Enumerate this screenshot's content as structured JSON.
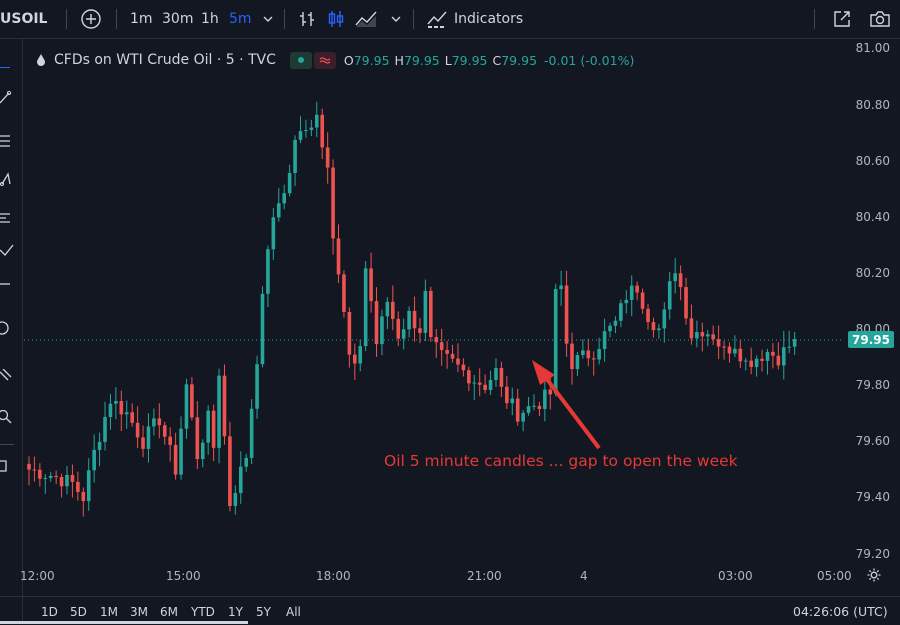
{
  "toolbar": {
    "symbol": "USOIL",
    "intervals": [
      "1m",
      "30m",
      "1h",
      "5m"
    ],
    "active_interval": "5m",
    "indicators_label": "Indicators"
  },
  "legend": {
    "title": "CFDs on WTI Crude Oil · 5 · TVC",
    "o_label": "O",
    "o_value": "79.95",
    "h_label": "H",
    "h_value": "79.95",
    "l_label": "L",
    "l_value": "79.95",
    "c_label": "C",
    "c_value": "79.95",
    "change": "-0.01 (-0.01%)",
    "up_color": "#26a69a",
    "down_color": "#ef5350"
  },
  "price_tag": "79.95",
  "annotation": {
    "text": "Oil 5 minute candles  ... gap to open the week",
    "color": "#e53935"
  },
  "chart_data": {
    "type": "candlestick",
    "y_ticks": [
      "81.00",
      "80.80",
      "80.60",
      "80.40",
      "80.20",
      "80.00",
      "79.80",
      "79.60",
      "79.40",
      "79.20"
    ],
    "ylim": [
      79.17,
      81.03
    ],
    "x_ticks": [
      "12:00",
      "15:00",
      "18:00",
      "21:00",
      "4",
      "03:00",
      "05:00"
    ],
    "last_price": 79.95,
    "close_path": [
      [
        0,
        79.5
      ],
      [
        4,
        79.48
      ],
      [
        8,
        79.45
      ],
      [
        10,
        79.4
      ],
      [
        12,
        79.56
      ],
      [
        15,
        79.75
      ],
      [
        18,
        79.7
      ],
      [
        21,
        79.6
      ],
      [
        24,
        79.68
      ],
      [
        27,
        79.5
      ],
      [
        29,
        79.8
      ],
      [
        31,
        79.55
      ],
      [
        33,
        79.68
      ],
      [
        34,
        79.58
      ],
      [
        35,
        79.85
      ],
      [
        37,
        79.38
      ],
      [
        40,
        79.55
      ],
      [
        42,
        79.9
      ],
      [
        44,
        80.3
      ],
      [
        46,
        80.45
      ],
      [
        48,
        80.55
      ],
      [
        49,
        80.68
      ],
      [
        51,
        80.7
      ],
      [
        53,
        80.78
      ],
      [
        54,
        80.65
      ],
      [
        55,
        80.6
      ],
      [
        56,
        80.35
      ],
      [
        57,
        80.2
      ],
      [
        58,
        80.05
      ],
      [
        59,
        79.9
      ],
      [
        60,
        79.85
      ],
      [
        61,
        79.95
      ],
      [
        62,
        80.22
      ],
      [
        63,
        80.1
      ],
      [
        64,
        79.95
      ],
      [
        66,
        80.1
      ],
      [
        68,
        79.98
      ],
      [
        70,
        80.05
      ],
      [
        72,
        80.0
      ],
      [
        73,
        80.12
      ],
      [
        74,
        79.95
      ],
      [
        76,
        79.9
      ],
      [
        78,
        79.88
      ],
      [
        80,
        79.85
      ],
      [
        82,
        79.82
      ],
      [
        84,
        79.8
      ],
      [
        86,
        79.85
      ],
      [
        87,
        79.78
      ],
      [
        88,
        79.75
      ],
      [
        90,
        79.7
      ],
      [
        92,
        79.72
      ],
      [
        94,
        79.74
      ],
      [
        96,
        79.77
      ],
      [
        97,
        80.12
      ],
      [
        98,
        80.15
      ],
      [
        99,
        79.95
      ],
      [
        100,
        79.88
      ],
      [
        102,
        79.9
      ],
      [
        104,
        79.92
      ],
      [
        106,
        79.98
      ],
      [
        108,
        80.02
      ],
      [
        110,
        80.12
      ],
      [
        112,
        80.15
      ],
      [
        114,
        80.05
      ],
      [
        116,
        80.0
      ],
      [
        117,
        80.05
      ],
      [
        118,
        80.15
      ],
      [
        119,
        80.22
      ],
      [
        120,
        80.15
      ],
      [
        122,
        79.98
      ],
      [
        124,
        80.0
      ],
      [
        126,
        79.98
      ],
      [
        128,
        79.92
      ],
      [
        130,
        79.95
      ],
      [
        132,
        79.88
      ],
      [
        134,
        79.9
      ],
      [
        136,
        79.92
      ],
      [
        138,
        79.9
      ],
      [
        140,
        79.94
      ],
      [
        141,
        79.95
      ]
    ]
  },
  "bottom": {
    "ranges": [
      "1D",
      "5D",
      "1M",
      "3M",
      "6M",
      "YTD",
      "1Y",
      "5Y",
      "All"
    ],
    "clock": "04:26:06 (UTC)"
  }
}
